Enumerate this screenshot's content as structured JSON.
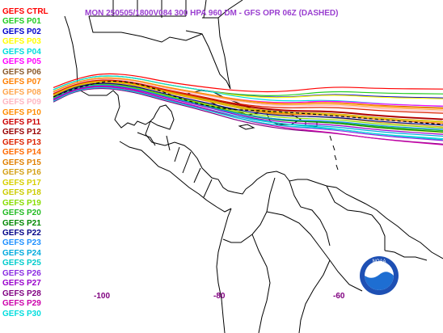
{
  "title": {
    "text": "MON 250505/1800V084  300 HPA 960 DM - GFS OPR 06Z (DASHED)",
    "color": "#9a3fd0"
  },
  "legend": [
    {
      "label": "GEFS CTRL",
      "color": "#ff0000"
    },
    {
      "label": "GEFS P01",
      "color": "#22cc22"
    },
    {
      "label": "GEFS P02",
      "color": "#0000cc"
    },
    {
      "label": "GEFS P03",
      "color": "#ffff00"
    },
    {
      "label": "GEFS P04",
      "color": "#00dddd"
    },
    {
      "label": "GEFS P05",
      "color": "#ff00ff"
    },
    {
      "label": "GEFS P06",
      "color": "#8b5a2b"
    },
    {
      "label": "GEFS P07",
      "color": "#ff7f00"
    },
    {
      "label": "GEFS P08",
      "color": "#ffa64d"
    },
    {
      "label": "GEFS P09",
      "color": "#ffb6c1"
    },
    {
      "label": "GEFS P10",
      "color": "#ff8c00"
    },
    {
      "label": "GEFS P11",
      "color": "#cc0000"
    },
    {
      "label": "GEFS P12",
      "color": "#990000"
    },
    {
      "label": "GEFS P13",
      "color": "#dd2200"
    },
    {
      "label": "GEFS P14",
      "color": "#ff6a00"
    },
    {
      "label": "GEFS P15",
      "color": "#e08000"
    },
    {
      "label": "GEFS P16",
      "color": "#d4a017"
    },
    {
      "label": "GEFS P17",
      "color": "#d8d000"
    },
    {
      "label": "GEFS P18",
      "color": "#cccc00"
    },
    {
      "label": "GEFS P19",
      "color": "#88dd00"
    },
    {
      "label": "GEFS P20",
      "color": "#22bb22"
    },
    {
      "label": "GEFS P21",
      "color": "#008800"
    },
    {
      "label": "GEFS P22",
      "color": "#000088"
    },
    {
      "label": "GEFS P23",
      "color": "#1e90ff"
    },
    {
      "label": "GEFS P24",
      "color": "#00aadd"
    },
    {
      "label": "GEFS P25",
      "color": "#00cccc"
    },
    {
      "label": "GEFS P26",
      "color": "#8a2be2"
    },
    {
      "label": "GEFS P27",
      "color": "#9900cc"
    },
    {
      "label": "GEFS P28",
      "color": "#800080"
    },
    {
      "label": "GEFS P29",
      "color": "#cc00aa"
    },
    {
      "label": "GEFS P30",
      "color": "#00dddd"
    }
  ],
  "axis": {
    "longitude_ticks": [
      "-100",
      "-80",
      "-60"
    ],
    "tick_color": "#800080"
  },
  "logo": {
    "text": "NOAA",
    "colors": {
      "outer": "#1e50b4",
      "ring": "#ffffff",
      "inner": "#1e6ed2",
      "bird": "#ffffff"
    }
  },
  "chart_data": {
    "type": "line",
    "field": "300 hPa 960 dm geopotential height contour",
    "forecast": "250505/1800V084",
    "x_axis": {
      "unit": "degrees longitude",
      "ticks": [
        -100,
        -80,
        -60
      ]
    },
    "series_names_from_legend": true,
    "member_count": 31,
    "dashed_series": "GFS OPR 06Z",
    "colors": {
      "coastline": "#000000",
      "background": "#ffffff"
    }
  }
}
